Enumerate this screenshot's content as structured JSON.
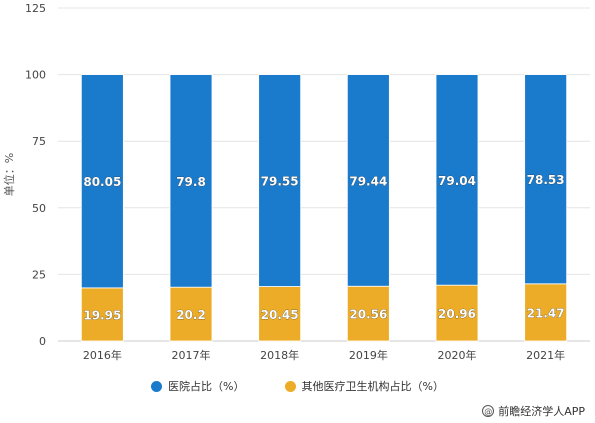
{
  "chart_data": {
    "type": "bar",
    "stacked": true,
    "categories": [
      "2016年",
      "2017年",
      "2018年",
      "2019年",
      "2020年",
      "2021年"
    ],
    "series": [
      {
        "name": "其他医疗卫生机构占比（%）",
        "values": [
          19.95,
          20.2,
          20.45,
          20.56,
          20.96,
          21.47
        ],
        "color": "#EDAC27"
      },
      {
        "name": "医院占比（%）",
        "values": [
          80.05,
          79.8,
          79.55,
          79.44,
          79.04,
          78.53
        ],
        "color": "#1A7ACB"
      }
    ],
    "ylabel": "单位：%",
    "ylim": [
      0,
      125
    ],
    "yticks": [
      0,
      25,
      50,
      75,
      100,
      125
    ],
    "grid": true,
    "legend_position": "bottom",
    "legend": [
      "医院占比（%）",
      "其他医疗卫生机构占比（%）"
    ]
  },
  "legend": {
    "hospital_label": "医院占比（%）",
    "other_label": "其他医疗卫生机构占比（%）",
    "hospital_color": "#1A7ACB",
    "other_color": "#EDAC27"
  },
  "source": {
    "icon": "at-sign-icon",
    "text": "前瞻经济学人APP"
  }
}
